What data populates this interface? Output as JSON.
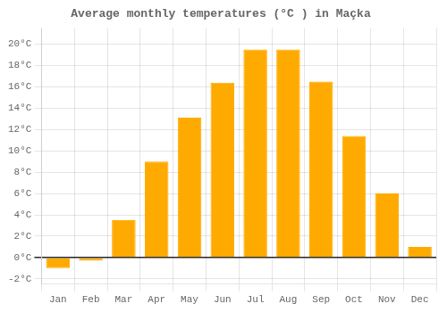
{
  "chart_data": {
    "type": "bar",
    "title": "Average monthly temperatures (°C ) in Maçka",
    "categories": [
      "Jan",
      "Feb",
      "Mar",
      "Apr",
      "May",
      "Jun",
      "Jul",
      "Aug",
      "Sep",
      "Oct",
      "Nov",
      "Dec"
    ],
    "values": [
      -1.0,
      -0.3,
      3.5,
      9.0,
      13.1,
      16.4,
      19.5,
      19.5,
      16.5,
      11.4,
      6.0,
      1.0
    ],
    "color": "#FFAA00",
    "ylim": [
      -2.5,
      21.5
    ],
    "yticks": [
      {
        "value": -2,
        "label": "-2°C"
      },
      {
        "value": 0,
        "label": "0°C"
      },
      {
        "value": 2,
        "label": "2°C"
      },
      {
        "value": 4,
        "label": "4°C"
      },
      {
        "value": 6,
        "label": "6°C"
      },
      {
        "value": 8,
        "label": "8°C"
      },
      {
        "value": 10,
        "label": "10°C"
      },
      {
        "value": 12,
        "label": "12°C"
      },
      {
        "value": 14,
        "label": "14°C"
      },
      {
        "value": 16,
        "label": "16°C"
      },
      {
        "value": 18,
        "label": "18°C"
      },
      {
        "value": 20,
        "label": "20°C"
      }
    ],
    "grid": true
  }
}
